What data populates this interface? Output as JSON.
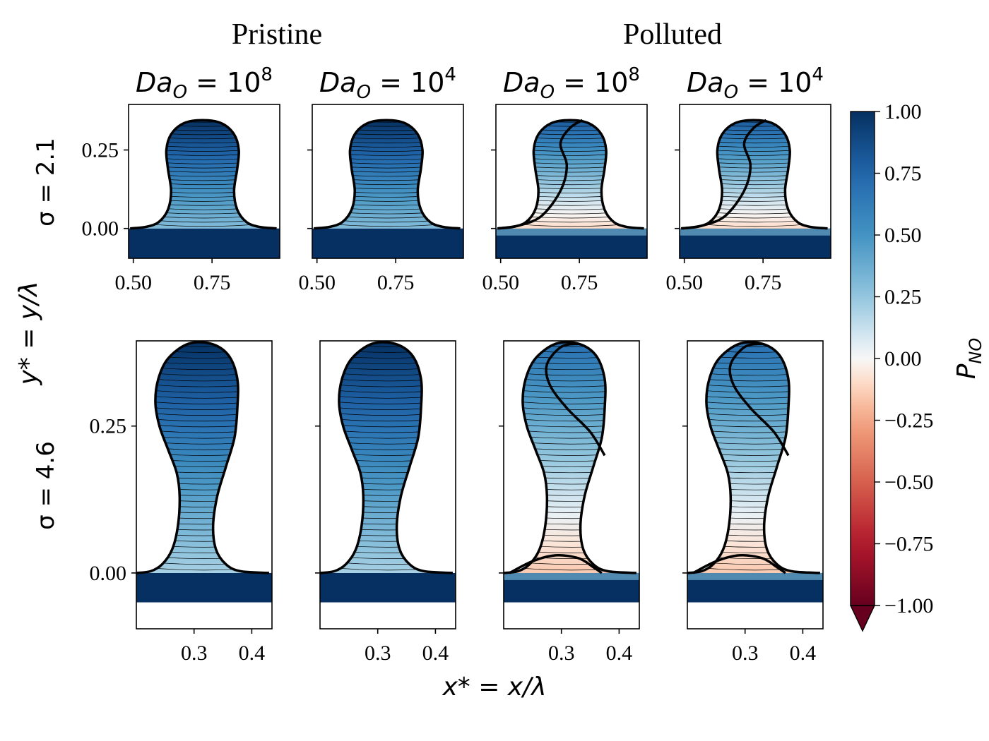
{
  "chart_data": {
    "type": "heatmap",
    "group_labels": [
      "Pristine",
      "Polluted"
    ],
    "column_titles": [
      {
        "base": "Da",
        "sub": "O",
        "exp": "8"
      },
      {
        "base": "Da",
        "sub": "O",
        "exp": "4"
      },
      {
        "base": "Da",
        "sub": "O",
        "exp": "8"
      },
      {
        "base": "Da",
        "sub": "O",
        "exp": "4"
      }
    ],
    "column_title_prefix": "= 10",
    "row_labels": [
      "σ = 2.1",
      "σ = 4.6"
    ],
    "xlabel": "x* = x/λ",
    "ylabel": "y* = y/λ",
    "rows": [
      {
        "sigma": 2.1,
        "xticks": [
          "0.50",
          "0.75"
        ],
        "xtick_values": [
          0.5,
          0.75
        ],
        "yticks": [
          "0.00",
          "0.25"
        ],
        "ytick_values": [
          0.0,
          0.25
        ],
        "xlim": [
          0.485,
          0.965
        ],
        "ylim": [
          -0.095,
          0.395
        ]
      },
      {
        "sigma": 4.6,
        "xticks": [
          "0.3",
          "0.4"
        ],
        "xtick_values": [
          0.3,
          0.4
        ],
        "yticks": [
          "0.00",
          "0.25"
        ],
        "ytick_values": [
          0.0,
          0.25
        ],
        "xlim": [
          0.2,
          0.435
        ],
        "ylim": [
          -0.095,
          0.395
        ]
      }
    ],
    "panels": [
      {
        "row": 0,
        "col": 0,
        "scenario": "Pristine",
        "Da_O": "10^8",
        "P_NO_range": [
          0.3,
          1.0
        ]
      },
      {
        "row": 0,
        "col": 1,
        "scenario": "Pristine",
        "Da_O": "10^4",
        "P_NO_range": [
          0.3,
          1.0
        ]
      },
      {
        "row": 0,
        "col": 2,
        "scenario": "Polluted",
        "Da_O": "10^8",
        "P_NO_range": [
          -0.1,
          0.8
        ]
      },
      {
        "row": 0,
        "col": 3,
        "scenario": "Polluted",
        "Da_O": "10^4",
        "P_NO_range": [
          -0.1,
          0.8
        ]
      },
      {
        "row": 1,
        "col": 0,
        "scenario": "Pristine",
        "Da_O": "10^8",
        "P_NO_range": [
          0.2,
          1.0
        ]
      },
      {
        "row": 1,
        "col": 1,
        "scenario": "Pristine",
        "Da_O": "10^4",
        "P_NO_range": [
          0.2,
          1.0
        ]
      },
      {
        "row": 1,
        "col": 2,
        "scenario": "Polluted",
        "Da_O": "10^8",
        "P_NO_range": [
          -0.15,
          0.7
        ]
      },
      {
        "row": 1,
        "col": 3,
        "scenario": "Polluted",
        "Da_O": "10^4",
        "P_NO_range": [
          -0.15,
          0.7
        ]
      }
    ],
    "colorbar": {
      "label": "P_NO",
      "label_base": "P",
      "label_sub": "NO",
      "colormap": "RdBu",
      "range": [
        -1.0,
        1.0
      ],
      "ticks": [
        "−1.00",
        "−0.75",
        "−0.50",
        "−0.25",
        "0.00",
        "0.25",
        "0.50",
        "0.75",
        "1.00"
      ],
      "tick_values": [
        -1.0,
        -0.75,
        -0.5,
        -0.25,
        0.0,
        0.25,
        0.5,
        0.75,
        1.0
      ],
      "extend": "min"
    },
    "colors": {
      "min": "#67001f",
      "max": "#053061",
      "zero": "#f7f7f7",
      "outline": "#000000"
    }
  }
}
